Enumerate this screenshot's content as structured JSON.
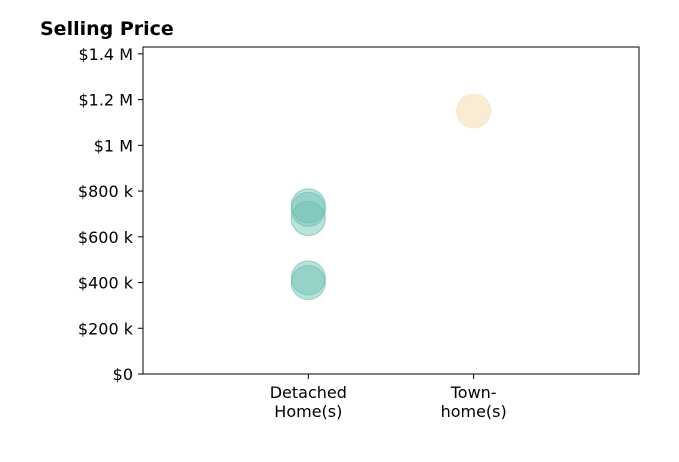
{
  "chart_data": {
    "type": "scatter",
    "title": "Selling Price",
    "xlabel": "",
    "ylabel": "",
    "categories": [
      [
        "Detached",
        "Home(s)"
      ],
      [
        "Town-",
        "home(s)"
      ]
    ],
    "ylim": [
      0,
      1430000
    ],
    "yticks": [
      0,
      200000,
      400000,
      600000,
      800000,
      1000000,
      1200000,
      1400000
    ],
    "ytick_labels": [
      "$0",
      "$200 k",
      "$400 k",
      "$600 k",
      "$800 k",
      "$1 M",
      "$1.2 M",
      "$1.4 M"
    ],
    "xlim": [
      -1,
      2
    ],
    "grid": false,
    "legend": "none",
    "series": [
      {
        "category_index": 0,
        "color": "#6bbfb1",
        "opacity": 0.45,
        "values": [
          735000,
          720000,
          680000,
          420000,
          400000
        ]
      },
      {
        "category_index": 1,
        "color": "#f5dfb5",
        "opacity": 0.6,
        "values": [
          1150000
        ]
      }
    ]
  }
}
